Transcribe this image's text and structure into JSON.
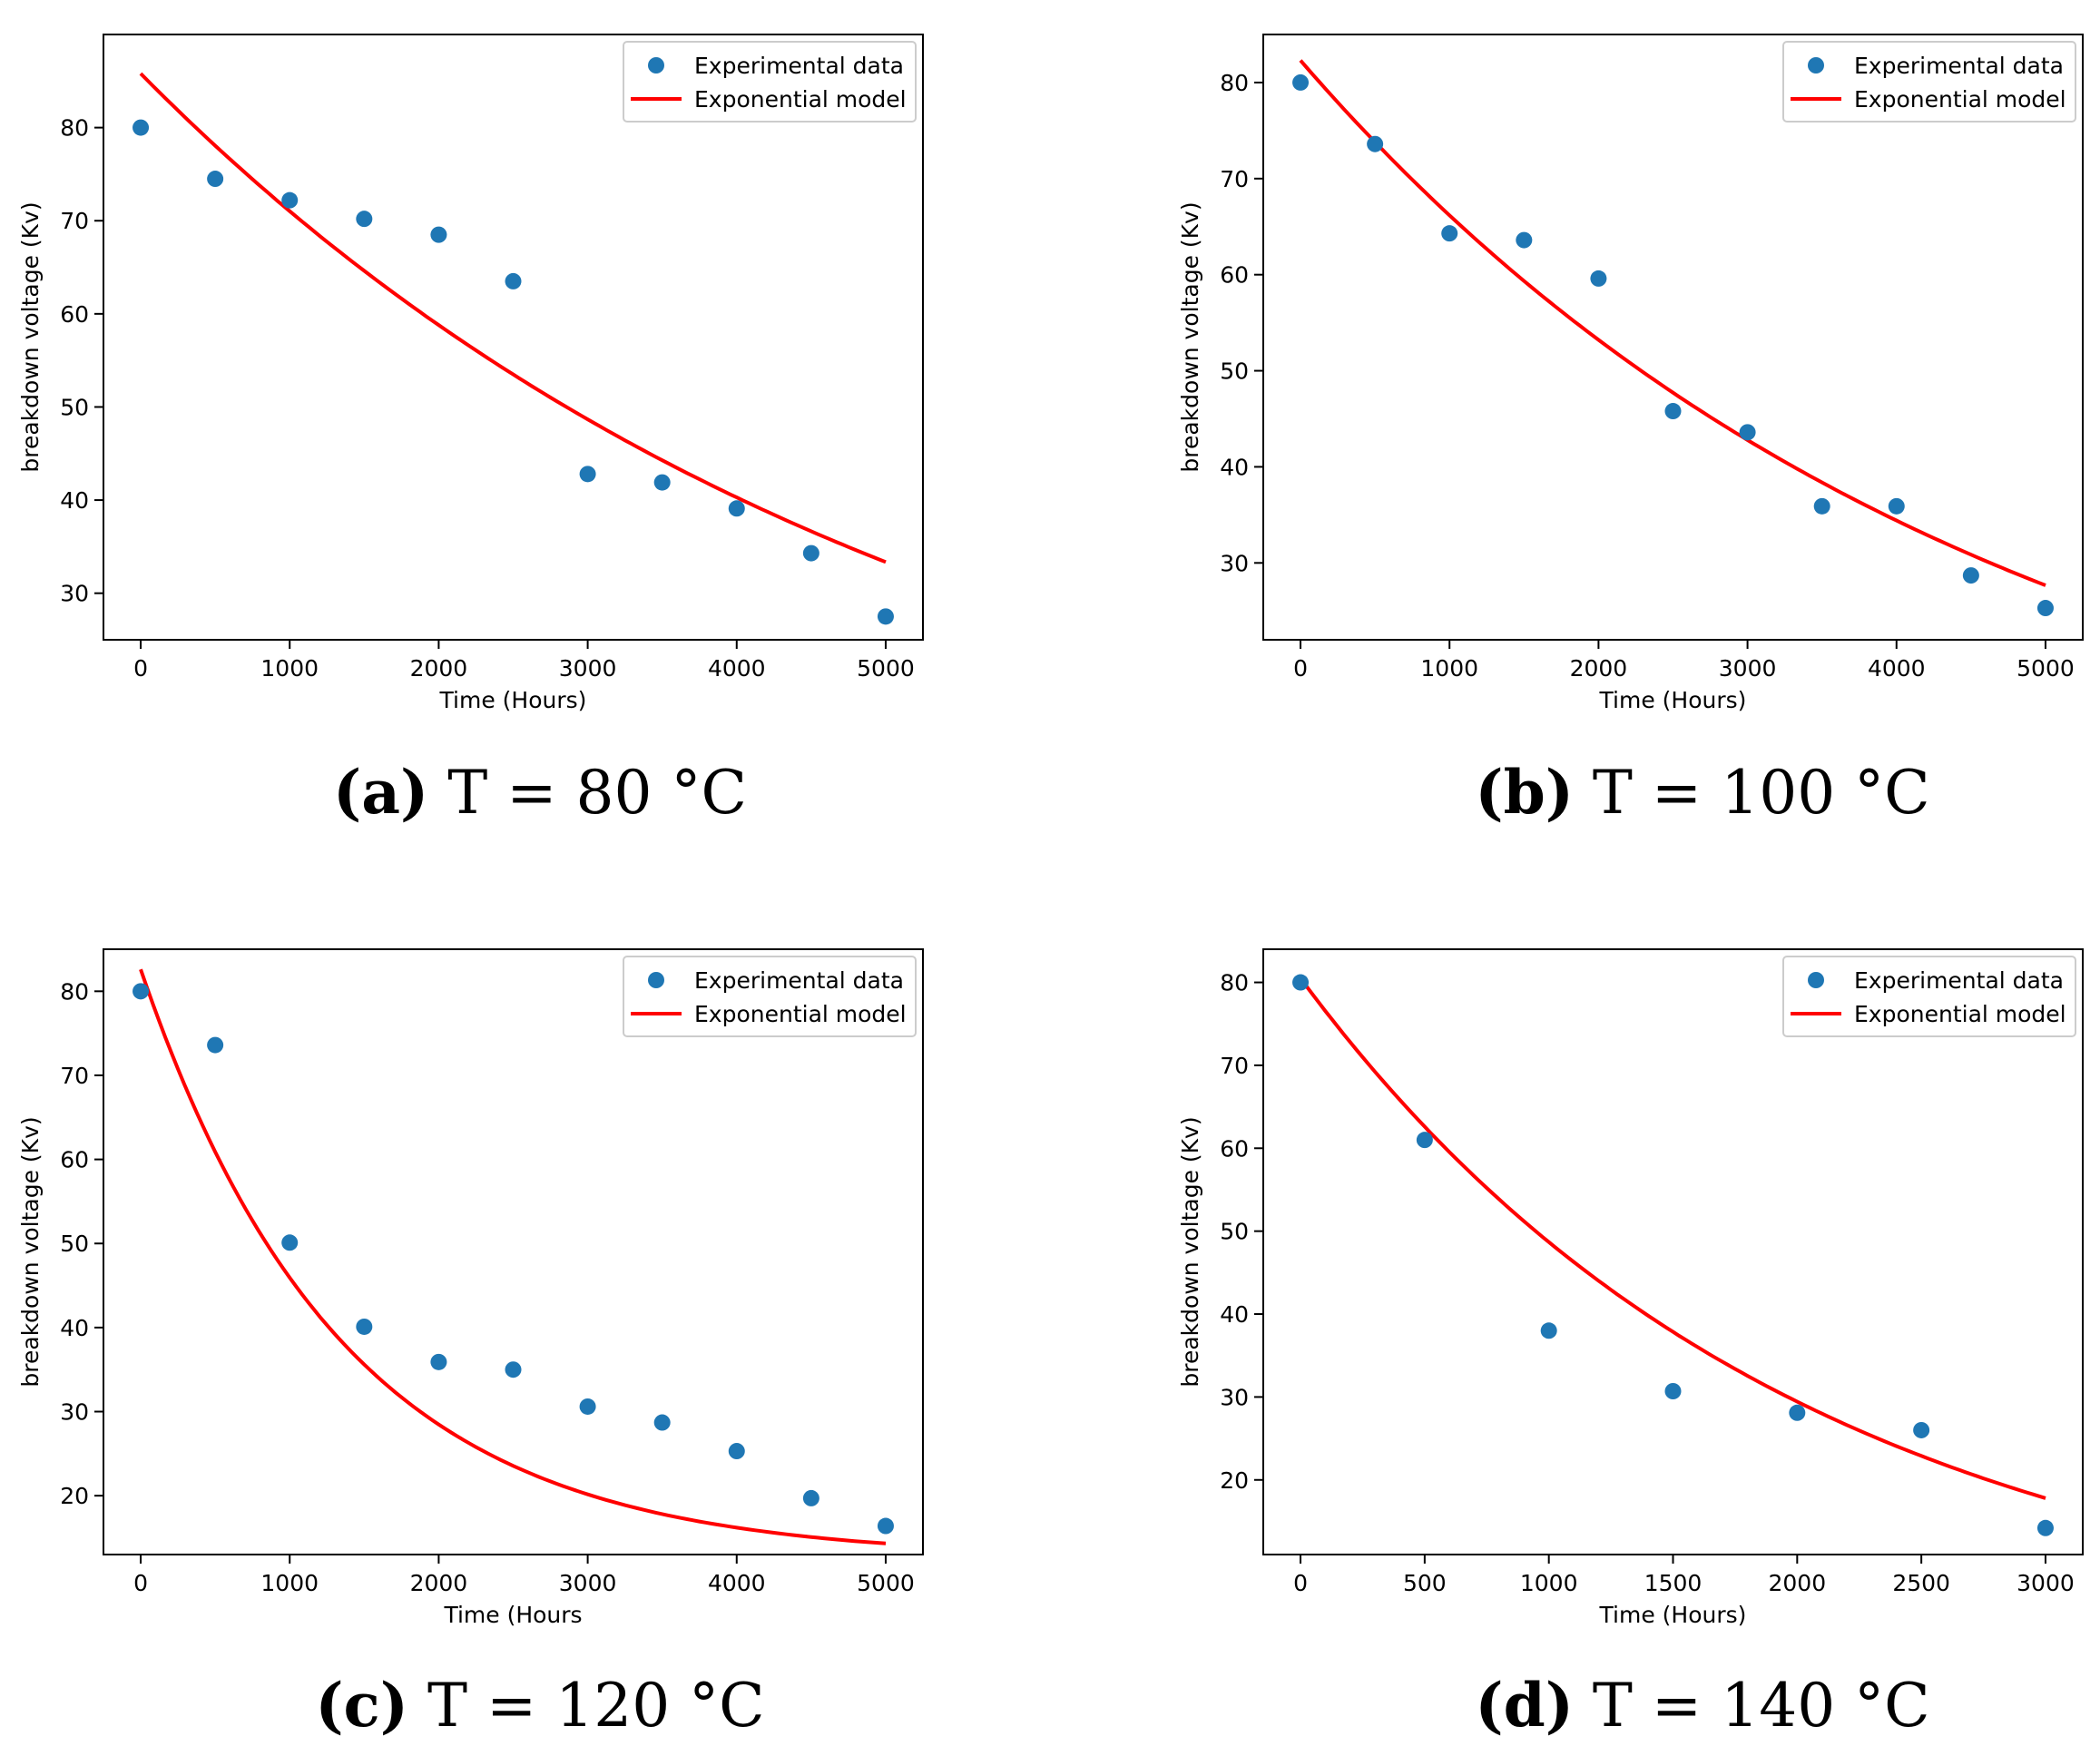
{
  "chart_data": [
    {
      "type": "scatter+line",
      "panel_letter": "a",
      "caption_text": " T = 80 °C",
      "xlabel": "Time (Hours)",
      "ylabel": "breakdown voltage (Kv)",
      "xlim": [
        -250,
        5250
      ],
      "ylim": [
        25,
        90
      ],
      "xticks": [
        0,
        1000,
        2000,
        3000,
        4000,
        5000
      ],
      "yticks": [
        30,
        40,
        50,
        60,
        70,
        80
      ],
      "legend": {
        "position": "top-right",
        "entries": [
          "Experimental data",
          "Exponential model"
        ]
      },
      "series": [
        {
          "name": "Experimental data",
          "kind": "scatter",
          "color": "#1f77b4",
          "x": [
            0,
            500,
            1000,
            1500,
            2000,
            2500,
            3000,
            3500,
            4000,
            4500,
            5000
          ],
          "y": [
            80,
            74.5,
            72.2,
            70.2,
            68.5,
            63.5,
            42.8,
            41.9,
            39.1,
            34.3,
            27.5
          ]
        },
        {
          "name": "Exponential model",
          "kind": "line",
          "color": "#ff0000",
          "model": {
            "a": 85.8,
            "b": 0.000189
          },
          "x_range": [
            0,
            5000
          ]
        }
      ]
    },
    {
      "type": "scatter+line",
      "panel_letter": "b",
      "caption_text": " T = 100 °C",
      "xlabel": "Time (Hours)",
      "ylabel": "breakdown voltage (Kv)",
      "xlim": [
        -250,
        5250
      ],
      "ylim": [
        22,
        85
      ],
      "xticks": [
        0,
        1000,
        2000,
        3000,
        4000,
        5000
      ],
      "yticks": [
        30,
        40,
        50,
        60,
        70,
        80
      ],
      "legend": {
        "position": "top-right",
        "entries": [
          "Experimental data",
          "Exponential model"
        ]
      },
      "series": [
        {
          "name": "Experimental data",
          "kind": "scatter",
          "color": "#1f77b4",
          "x": [
            0,
            500,
            1000,
            1500,
            2000,
            2500,
            3000,
            3500,
            4000,
            4500,
            5000
          ],
          "y": [
            80,
            73.6,
            64.3,
            63.6,
            59.6,
            45.8,
            43.6,
            35.9,
            35.9,
            28.7,
            25.3
          ]
        },
        {
          "name": "Exponential model",
          "kind": "line",
          "color": "#ff0000",
          "model": {
            "a": 82.3,
            "b": 0.000218
          },
          "x_range": [
            0,
            5000
          ]
        }
      ]
    },
    {
      "type": "scatter+line",
      "panel_letter": "c",
      "caption_text": " T = 120 °C",
      "xlabel": "Time (Hours",
      "ylabel": "breakdown voltage (Kv)",
      "xlim": [
        -250,
        5250
      ],
      "ylim": [
        13,
        85
      ],
      "xticks": [
        0,
        1000,
        2000,
        3000,
        4000,
        5000
      ],
      "yticks": [
        20,
        30,
        40,
        50,
        60,
        70,
        80
      ],
      "legend": {
        "position": "top-right",
        "entries": [
          "Experimental data",
          "Exponential model"
        ]
      },
      "series": [
        {
          "name": "Experimental data",
          "kind": "scatter",
          "color": "#1f77b4",
          "x": [
            0,
            500,
            1000,
            1500,
            2000,
            2500,
            3000,
            3500,
            4000,
            4500,
            5000
          ],
          "y": [
            80,
            73.6,
            50.1,
            40.1,
            35.9,
            35.0,
            30.6,
            28.7,
            25.3,
            19.7,
            16.4
          ]
        },
        {
          "name": "Exponential model",
          "kind": "line",
          "color": "#ff0000",
          "model": {
            "a": 18.0,
            "b": 0.000742,
            "c": 64.8,
            "d": 1.55e-07,
            "form": "pair"
          },
          "x_range": [
            0,
            5000
          ]
        }
      ]
    },
    {
      "type": "scatter+line",
      "panel_letter": "d",
      "caption_text": " T = 140 °C",
      "xlabel": "Time (Hours)",
      "ylabel": "breakdown voltage (Kv)",
      "xlim": [
        -150,
        3150
      ],
      "ylim": [
        11,
        84
      ],
      "xticks": [
        0,
        500,
        1000,
        1500,
        2000,
        2500,
        3000
      ],
      "yticks": [
        20,
        30,
        40,
        50,
        60,
        70,
        80
      ],
      "legend": {
        "position": "top-right",
        "entries": [
          "Experimental data",
          "Exponential model"
        ]
      },
      "series": [
        {
          "name": "Experimental data",
          "kind": "scatter",
          "color": "#1f77b4",
          "x": [
            0,
            500,
            1000,
            1500,
            2000,
            2500,
            3000
          ],
          "y": [
            80,
            61,
            38,
            30.7,
            28.1,
            26,
            14.2
          ]
        },
        {
          "name": "Exponential model",
          "kind": "line",
          "color": "#ff0000",
          "model": {
            "a": 80.5,
            "b": 0.000503
          },
          "x_range": [
            0,
            3000
          ]
        }
      ]
    }
  ]
}
